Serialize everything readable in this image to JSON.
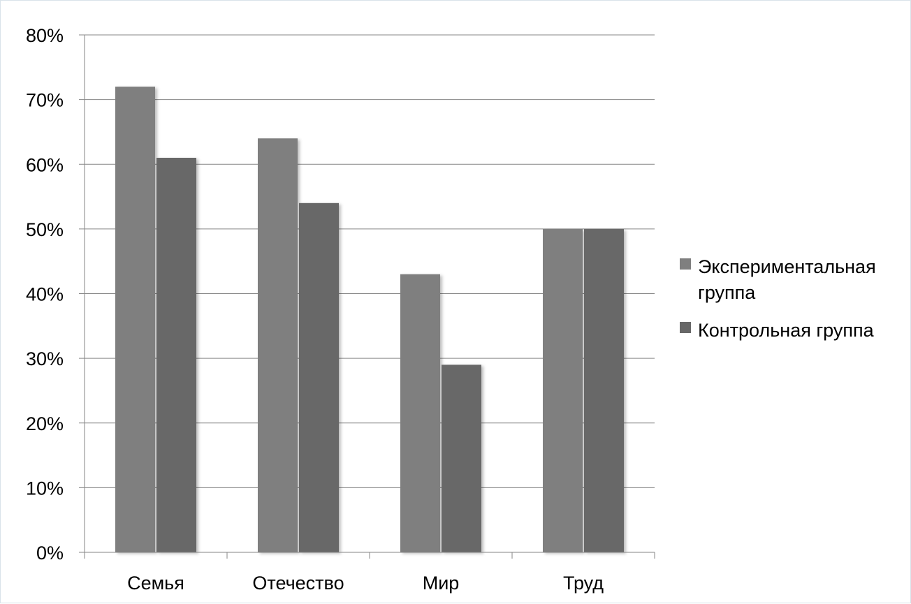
{
  "chart_data": {
    "type": "bar",
    "title": "",
    "xlabel": "",
    "ylabel": "",
    "categories": [
      "Семья",
      "Отечество",
      "Мир",
      "Труд"
    ],
    "series": [
      {
        "name": "Экспериментальная группа",
        "color": "#7f7f7f",
        "values": [
          72,
          64,
          43,
          50
        ]
      },
      {
        "name": "Контрольная группа",
        "color": "#676767",
        "values": [
          61,
          54,
          29,
          50
        ]
      }
    ],
    "ylim": [
      0,
      80
    ],
    "y_ticks": [
      "0%",
      "10%",
      "20%",
      "30%",
      "40%",
      "50%",
      "60%",
      "70%",
      "80%"
    ],
    "y_unit": "%",
    "grid": true,
    "legend_position": "right",
    "legend": [
      {
        "lines": [
          "Экспериментальная",
          "группа"
        ]
      },
      {
        "lines": [
          "Контрольная группа"
        ]
      }
    ]
  }
}
